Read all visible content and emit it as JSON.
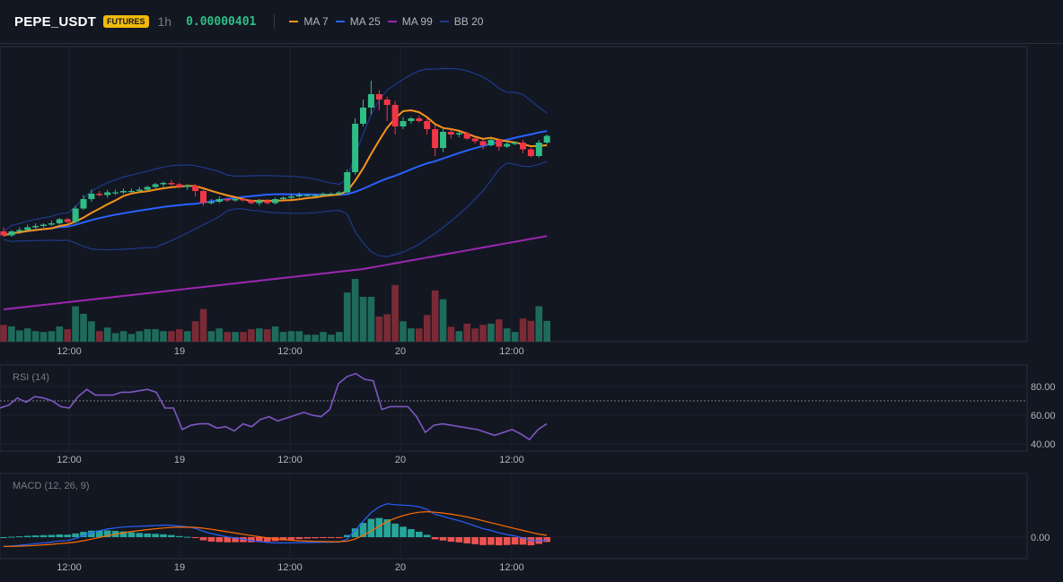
{
  "header": {
    "symbol": "PEPE_USDT",
    "badge": "FUTURES",
    "interval": "1h",
    "price": "0.00000401",
    "legend": [
      {
        "label": "MA 7",
        "color": "#f7931a"
      },
      {
        "label": "MA 25",
        "color": "#2962ff"
      },
      {
        "label": "MA 99",
        "color": "#9c27b0"
      },
      {
        "label": "BB 20",
        "color": "#1e3a8a"
      }
    ]
  },
  "colors": {
    "up": "#2ebd85",
    "down": "#f23645",
    "up_vol": "#1e6b5c",
    "down_vol": "#7a2a35",
    "macd_line": "#2962ff",
    "signal_line": "#ff6d00",
    "rsi_line": "#7e57c2"
  },
  "time_labels": [
    "12:00",
    "19",
    "12:00",
    "20",
    "12:00"
  ],
  "rsi": {
    "title": "RSI (14)",
    "axis": [
      "80.00",
      "60.00",
      "40.00"
    ],
    "values": [
      65,
      67,
      72,
      69,
      73,
      72,
      70,
      66,
      65,
      73,
      78,
      74,
      74,
      74,
      76,
      76,
      77,
      78,
      76,
      65,
      65,
      50,
      53,
      54,
      54,
      51,
      52,
      49,
      54,
      52,
      57,
      59,
      56,
      58,
      60,
      62,
      60,
      59,
      64,
      82,
      87,
      89,
      85,
      84,
      64,
      66,
      66,
      66,
      59,
      48,
      53,
      54,
      53,
      52,
      51,
      50,
      48,
      46,
      48,
      50,
      47,
      43,
      50,
      54
    ]
  },
  "macd": {
    "title": "MACD (12, 26, 9)",
    "axis": [
      "0.00"
    ]
  },
  "chart_data": {
    "type": "candlestick",
    "symbol": "PEPE_USDT",
    "interval": "1h",
    "x_labels": [
      "12:00",
      "19",
      "12:00",
      "20",
      "12:00"
    ],
    "candles": [
      [
        28,
        25,
        31,
        24
      ],
      [
        25,
        28,
        29,
        24
      ],
      [
        28,
        29,
        31,
        26
      ],
      [
        29,
        31,
        33,
        28
      ],
      [
        31,
        32,
        34,
        30
      ],
      [
        32,
        33,
        34,
        31
      ],
      [
        33,
        34,
        36,
        32
      ],
      [
        34,
        37,
        38,
        33
      ],
      [
        37,
        35,
        38,
        34
      ],
      [
        35,
        45,
        47,
        34
      ],
      [
        45,
        52,
        55,
        44
      ],
      [
        52,
        56,
        59,
        50
      ],
      [
        56,
        55,
        58,
        54
      ],
      [
        55,
        57,
        59,
        53
      ],
      [
        57,
        57,
        59,
        55
      ],
      [
        57,
        58,
        60,
        56
      ],
      [
        58,
        58,
        60,
        57
      ],
      [
        58,
        59,
        61,
        57
      ],
      [
        59,
        61,
        62,
        58
      ],
      [
        61,
        63,
        64,
        60
      ],
      [
        63,
        64,
        65,
        61
      ],
      [
        64,
        63,
        66,
        62
      ],
      [
        63,
        61,
        64,
        60
      ],
      [
        61,
        62,
        63,
        59
      ],
      [
        62,
        58,
        63,
        54
      ],
      [
        58,
        49,
        59,
        47
      ],
      [
        49,
        50,
        52,
        48
      ],
      [
        50,
        52,
        54,
        49
      ],
      [
        52,
        51,
        53,
        50
      ],
      [
        51,
        52,
        53,
        50
      ],
      [
        52,
        51,
        53,
        50
      ],
      [
        51,
        49,
        52,
        48
      ],
      [
        49,
        51,
        52,
        47
      ],
      [
        51,
        49,
        52,
        48
      ],
      [
        49,
        52,
        53,
        48
      ],
      [
        52,
        53,
        54,
        51
      ],
      [
        53,
        54,
        56,
        52
      ],
      [
        54,
        55,
        57,
        53
      ],
      [
        55,
        55,
        56,
        54
      ],
      [
        55,
        55,
        56,
        54
      ],
      [
        55,
        56,
        57,
        54
      ],
      [
        56,
        56,
        57,
        55
      ],
      [
        56,
        57,
        58,
        55
      ],
      [
        57,
        72,
        74,
        56
      ],
      [
        72,
        108,
        112,
        70
      ],
      [
        108,
        120,
        126,
        106
      ],
      [
        120,
        130,
        140,
        115
      ],
      [
        130,
        126,
        133,
        118
      ],
      [
        126,
        122,
        128,
        110
      ],
      [
        122,
        106,
        125,
        100
      ],
      [
        106,
        110,
        113,
        104
      ],
      [
        110,
        112,
        113,
        108
      ],
      [
        112,
        110,
        114,
        109
      ],
      [
        110,
        104,
        112,
        100
      ],
      [
        104,
        90,
        107,
        84
      ],
      [
        90,
        102,
        104,
        87
      ],
      [
        102,
        100,
        104,
        97
      ],
      [
        100,
        101,
        102,
        98
      ],
      [
        101,
        97,
        102,
        96
      ],
      [
        97,
        95,
        98,
        93
      ],
      [
        95,
        92,
        96,
        89
      ],
      [
        92,
        96,
        97,
        91
      ],
      [
        96,
        91,
        97,
        88
      ],
      [
        91,
        93,
        95,
        90
      ],
      [
        93,
        94,
        95,
        92
      ],
      [
        94,
        89,
        96,
        86
      ],
      [
        89,
        84,
        90,
        83
      ],
      [
        84,
        94,
        96,
        83
      ],
      [
        94,
        99,
        100,
        93
      ]
    ],
    "ma_periods": [
      7,
      25,
      99
    ],
    "bollinger_period": 20,
    "rsi_period": 14,
    "macd_params": [
      12,
      26,
      9
    ]
  }
}
